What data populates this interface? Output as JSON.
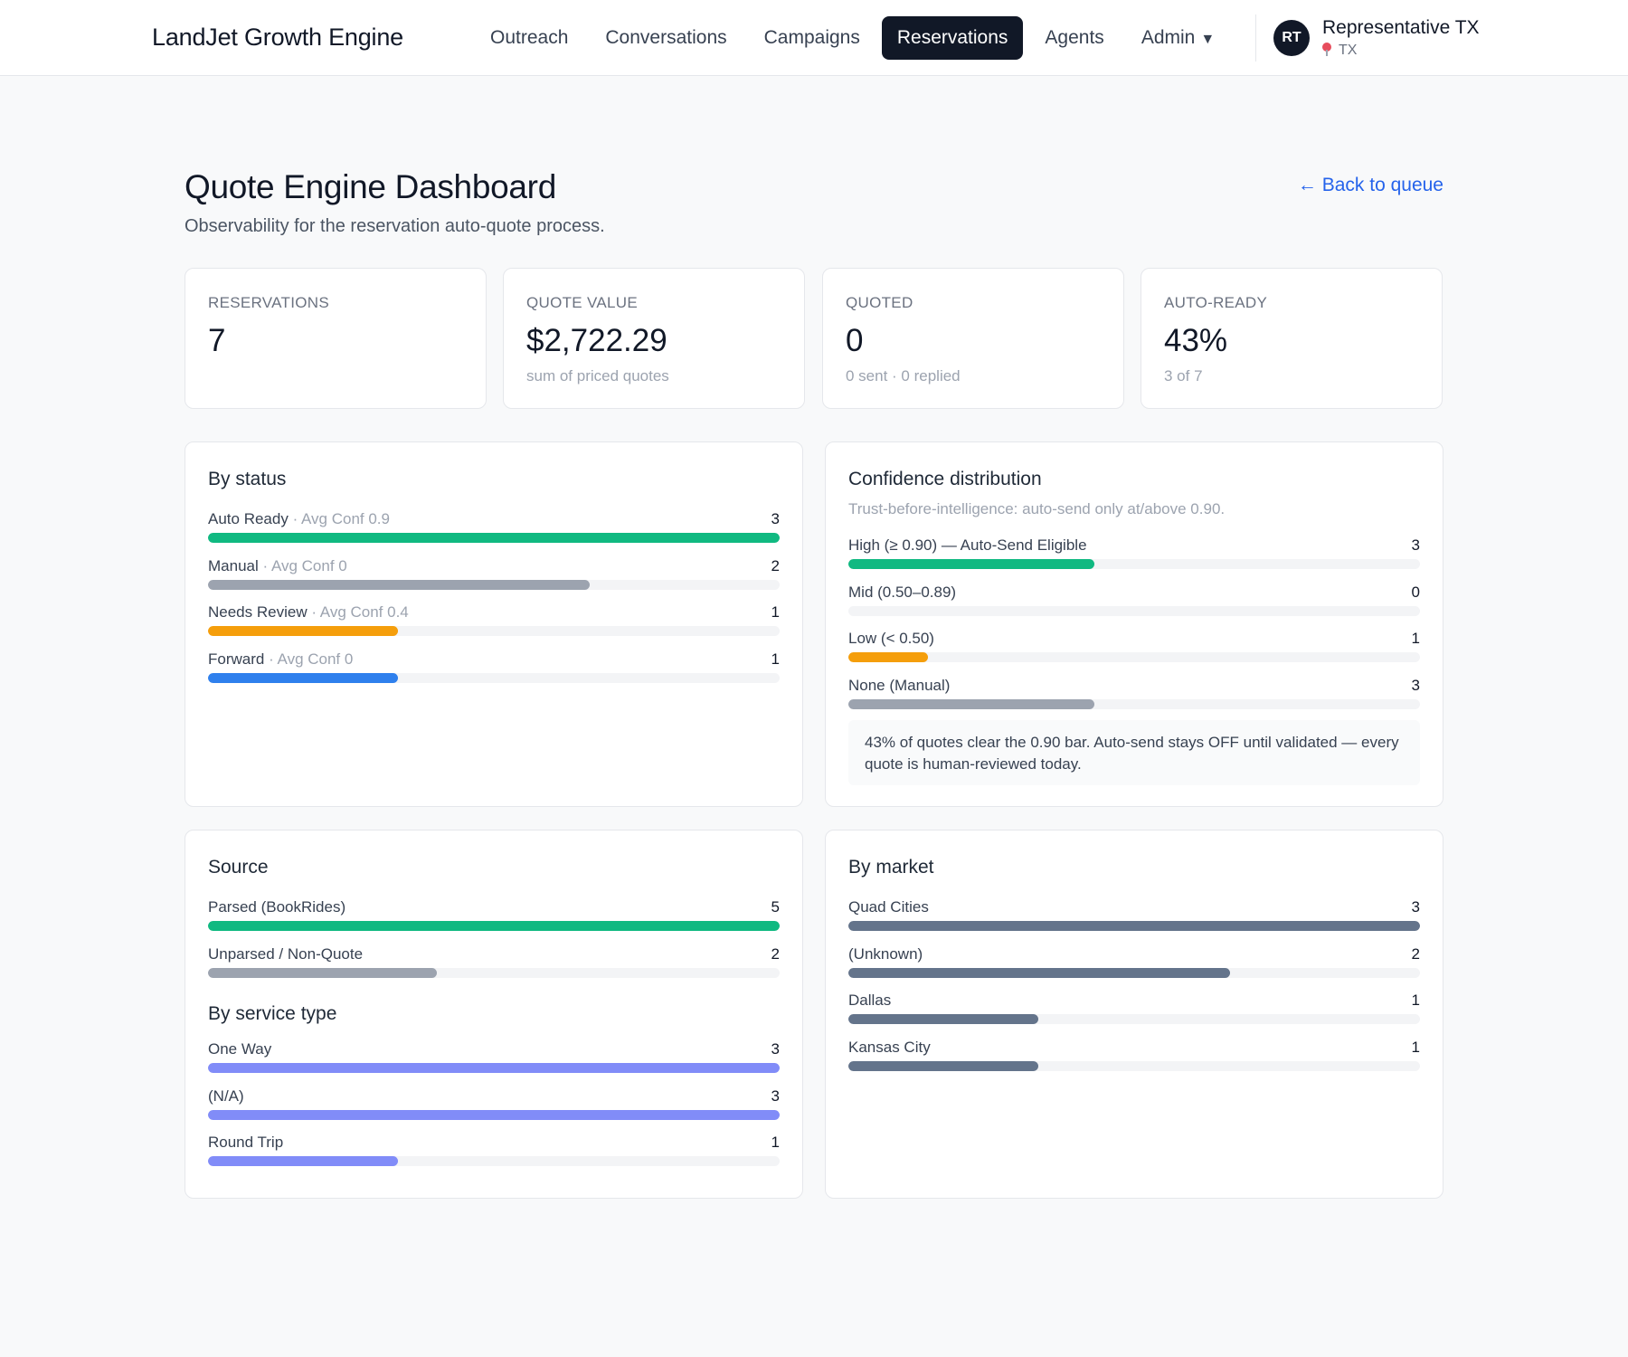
{
  "app": {
    "brand": "LandJet Growth Engine",
    "nav": [
      {
        "label": "Outreach",
        "active": false
      },
      {
        "label": "Conversations",
        "active": false
      },
      {
        "label": "Campaigns",
        "active": false
      },
      {
        "label": "Reservations",
        "active": true
      },
      {
        "label": "Agents",
        "active": false
      },
      {
        "label": "Admin",
        "active": false
      }
    ],
    "admin_caret": "▼",
    "user": {
      "initials": "RT",
      "name": "Representative TX",
      "location": "TX"
    }
  },
  "header": {
    "title": "Quote Engine Dashboard",
    "subtitle": "Observability for the reservation auto-quote process.",
    "back_link": "← Back to queue"
  },
  "stats": [
    {
      "label": "RESERVATIONS",
      "value": "7",
      "sub": ""
    },
    {
      "label": "QUOTE VALUE",
      "value": "$2,722.29",
      "sub": "sum of priced quotes"
    },
    {
      "label": "QUOTED",
      "value": "0",
      "sub": "0 sent · 0 replied"
    },
    {
      "label": "AUTO-READY",
      "value": "43%",
      "sub": "3 of 7"
    }
  ],
  "by_status": {
    "title": "By status",
    "rows": [
      {
        "label": "Auto Ready",
        "detail": "Avg Conf 0.9",
        "count": 3,
        "fraction": 1.0,
        "color": "#10b981"
      },
      {
        "label": "Manual",
        "detail": "Avg Conf 0",
        "count": 2,
        "fraction": 0.667,
        "color": "#9ca3af"
      },
      {
        "label": "Needs Review",
        "detail": "Avg Conf 0.4",
        "count": 1,
        "fraction": 0.333,
        "color": "#f59e0b"
      },
      {
        "label": "Forward",
        "detail": "Avg Conf 0",
        "count": 1,
        "fraction": 0.333,
        "color": "#2f80ed"
      }
    ]
  },
  "confidence": {
    "title": "Confidence distribution",
    "description": "Trust-before-intelligence: auto-send only at/above 0.90.",
    "rows": [
      {
        "label": "High (≥ 0.90) — Auto-Send Eligible",
        "count": 3,
        "fraction": 0.43,
        "color": "#10b981"
      },
      {
        "label": "Mid (0.50–0.89)",
        "count": 0,
        "fraction": 0,
        "color": "#9ca3af"
      },
      {
        "label": "Low (< 0.50)",
        "count": 1,
        "fraction": 0.14,
        "color": "#f59e0b"
      },
      {
        "label": "None (Manual)",
        "count": 3,
        "fraction": 0.43,
        "color": "#9ca3af"
      }
    ],
    "note": "43% of quotes clear the 0.90 bar. Auto-send stays OFF until validated — every quote is human-reviewed today."
  },
  "source": {
    "title": "Source",
    "rows": [
      {
        "label": "Parsed (BookRides)",
        "count": 5,
        "fraction": 1.0,
        "color": "#10b981"
      },
      {
        "label": "Unparsed / Non-Quote",
        "count": 2,
        "fraction": 0.4,
        "color": "#9ca3af"
      }
    ]
  },
  "service_type": {
    "title": "By service type",
    "rows": [
      {
        "label": "One Way",
        "count": 3,
        "fraction": 1.0,
        "color": "#818cf8"
      },
      {
        "label": "(N/A)",
        "count": 3,
        "fraction": 1.0,
        "color": "#818cf8"
      },
      {
        "label": "Round Trip",
        "count": 1,
        "fraction": 0.333,
        "color": "#818cf8"
      }
    ]
  },
  "market": {
    "title": "By market",
    "rows": [
      {
        "label": "Quad Cities",
        "count": 3,
        "fraction": 1.0,
        "color": "#64748b"
      },
      {
        "label": "(Unknown)",
        "count": 2,
        "fraction": 0.667,
        "color": "#64748b"
      },
      {
        "label": "Dallas",
        "count": 1,
        "fraction": 0.333,
        "color": "#64748b"
      },
      {
        "label": "Kansas City",
        "count": 1,
        "fraction": 0.333,
        "color": "#64748b"
      }
    ]
  }
}
